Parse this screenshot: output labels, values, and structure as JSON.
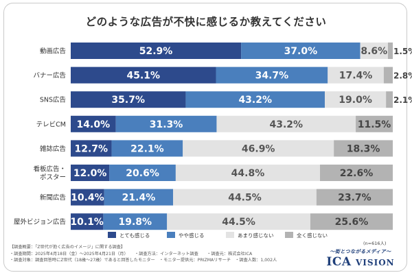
{
  "chart_data": {
    "type": "bar",
    "orientation": "horizontal",
    "stacked": true,
    "title": "どのような広告が不快に感じるか教えてください",
    "categories": [
      "動画広告",
      "バナー広告",
      "SNS広告",
      "テレビCM",
      "雑誌広告",
      "看板広告・\nポスター",
      "新聞広告",
      "屋外ビジョン広告"
    ],
    "series": [
      {
        "name": "とても感じる",
        "color": "#2d4a8c",
        "values": [
          52.9,
          45.1,
          35.7,
          14.0,
          12.7,
          12.0,
          10.4,
          10.1
        ]
      },
      {
        "name": "やや感じる",
        "color": "#4a7fbd",
        "values": [
          37.0,
          34.7,
          43.2,
          31.3,
          22.1,
          20.6,
          21.4,
          19.8
        ]
      },
      {
        "name": "あまり感じない",
        "color": "#e3e3e3",
        "values": [
          8.6,
          17.4,
          19.0,
          43.2,
          46.9,
          44.8,
          44.5,
          44.5
        ]
      },
      {
        "name": "全く感じない",
        "color": "#b3b3b3",
        "values": [
          1.5,
          2.8,
          2.1,
          11.5,
          18.3,
          22.6,
          23.7,
          25.6
        ]
      }
    ],
    "xlim": [
      0,
      100
    ],
    "legend_position": "bottom",
    "note": "(n=616人)"
  },
  "footer": {
    "lines": [
      "【調査概要：「Z世代が抱く広告のイメージ」に関する調査】",
      "・調査期間：2025年4月18日（金）〜2025年4月21日（月）　　・調査方法：インターネット調査　　・調査元：株式会社ICA",
      "・調査対象：調査回答時にZ世代（18歳〜27歳）であると回答したモニター　・モニター提供元：PRIZMAリサーチ　・調査人数：1,002人"
    ]
  },
  "brand": {
    "tagline": "〜街とつながるメディア〜",
    "name": "ICA",
    "name_suffix": "VISION"
  }
}
